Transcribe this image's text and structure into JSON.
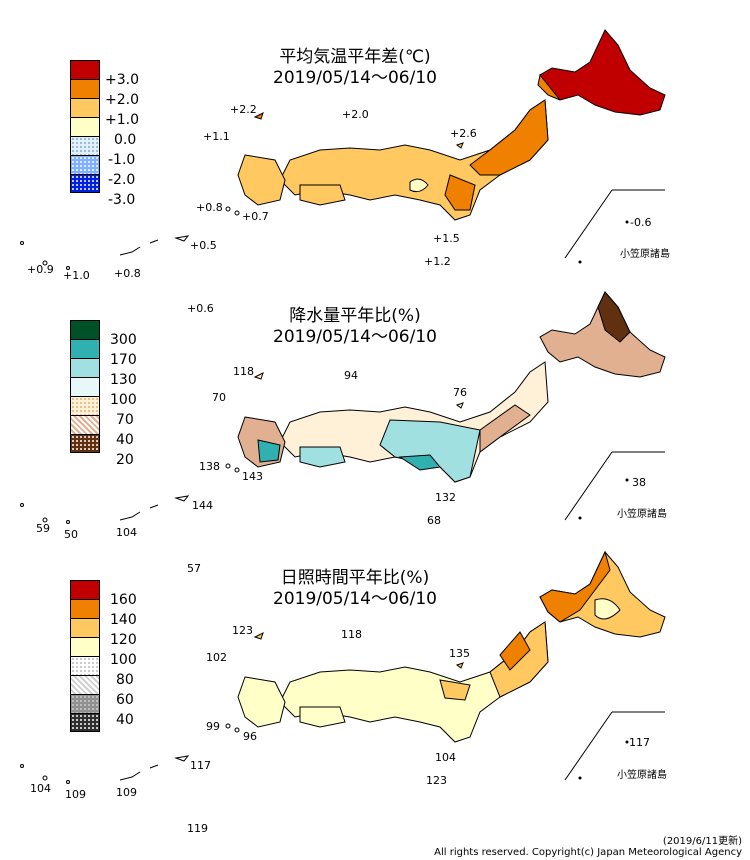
{
  "panels": [
    {
      "title_line1": "平均気温平年差(℃)",
      "title_line2": "2019/05/14～06/10",
      "legend": [
        {
          "label": "+3.0",
          "color": "#c00000"
        },
        {
          "label": "+2.0",
          "color": "#f08000"
        },
        {
          "label": "+1.0",
          "color": "#ffc860"
        },
        {
          "label": "0.0",
          "color": "#ffffc8"
        },
        {
          "label": "-1.0",
          "color": "#e0f0ff"
        },
        {
          "label": "-2.0",
          "color": "#80b0ff"
        },
        {
          "label": "-3.0",
          "color": "#0020e0"
        }
      ],
      "values": {
        "sado": "+2.2",
        "noto": "+2.0",
        "izu_n": "+2.6",
        "tsushima": "+1.1",
        "goto": "+0.8",
        "koshiki": "+0.7",
        "hachijo": "+1.5",
        "chichijima": "-0.6",
        "aogashima": "+1.2",
        "yonaguni": "+0.9",
        "miyako": "+1.0",
        "okinawa": "+0.8",
        "amami": "+0.5",
        "daito": "+0.6"
      },
      "inset_label": "小笠原諸島"
    },
    {
      "title_line1": "降水量平年比(%)",
      "title_line2": "2019/05/14～06/10",
      "legend": [
        {
          "label": "300",
          "color": "#005028"
        },
        {
          "label": "170",
          "color": "#30b0b0"
        },
        {
          "label": "130",
          "color": "#a0e0e0"
        },
        {
          "label": "100",
          "color": "#e8f8f8"
        },
        {
          "label": "70",
          "color": "#fff0d8"
        },
        {
          "label": "40",
          "color": "#e0b090"
        },
        {
          "label": "20",
          "color": "#603010"
        }
      ],
      "values": {
        "sado": "118",
        "noto": "94",
        "izu_n": "76",
        "tsushima": "70",
        "goto": "138",
        "koshiki": "143",
        "hachijo": "132",
        "chichijima": "38",
        "aogashima": "68",
        "yonaguni": "59",
        "miyako": "50",
        "okinawa": "104",
        "amami": "144",
        "daito": "57"
      },
      "inset_label": "小笠原諸島"
    },
    {
      "title_line1": "日照時間平年比(%)",
      "title_line2": "2019/05/14～06/10",
      "legend": [
        {
          "label": "160",
          "color": "#c00000"
        },
        {
          "label": "140",
          "color": "#f08000"
        },
        {
          "label": "120",
          "color": "#ffc860"
        },
        {
          "label": "100",
          "color": "#ffffc8"
        },
        {
          "label": "80",
          "color": "#f0f0f0"
        },
        {
          "label": "60",
          "color": "#a0a0a0"
        },
        {
          "label": "40",
          "color": "#303030"
        }
      ],
      "values": {
        "sado": "123",
        "noto": "118",
        "izu_n": "135",
        "tsushima": "102",
        "goto": "99",
        "koshiki": "96",
        "hachijo": "104",
        "chichijima": "117",
        "aogashima": "123",
        "yonaguni": "104",
        "miyako": "109",
        "okinawa": "109",
        "amami": "117",
        "daito": "119"
      },
      "inset_label": "小笠原諸島"
    }
  ],
  "footer": {
    "date": "(2019/6/11更新)",
    "copyright": "All rights reserved. Copyright(c) Japan Meteorological Agency"
  }
}
